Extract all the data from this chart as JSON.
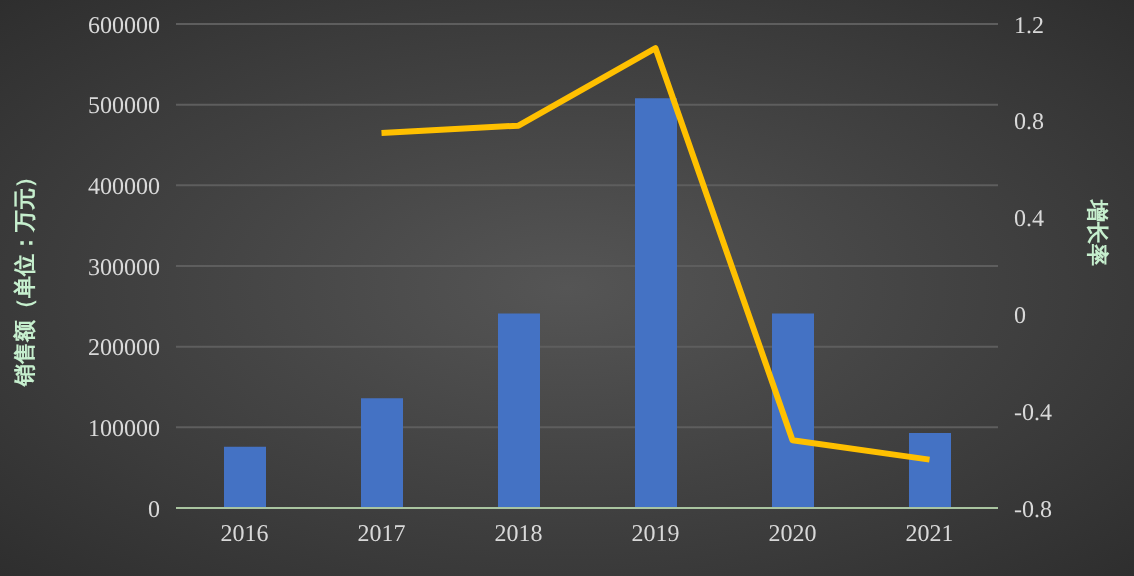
{
  "chart_data": {
    "type": "bar",
    "categories": [
      "2016",
      "2017",
      "2018",
      "2019",
      "2020",
      "2021"
    ],
    "series": [
      {
        "color": "#4472c4",
        "values": [
          76000,
          136000,
          241000,
          508000,
          241000,
          93000
        ]
      },
      {
        "type": "line",
        "axis": "y2",
        "color": "#ffc000",
        "values": [
          null,
          0.75,
          0.78,
          1.1,
          -0.52,
          -0.6
        ]
      }
    ],
    "ylabel": "销售额（单位：万元）",
    "y2label": "增长率",
    "ylim": [
      0,
      600000
    ],
    "yticks": [
      0,
      100000,
      200000,
      300000,
      400000,
      500000,
      600000
    ],
    "y2lim": [
      -0.8,
      1.2
    ],
    "y2ticks": [
      -0.8,
      -0.4,
      0,
      0.4,
      0.8,
      1.2
    ],
    "grid": "y",
    "legend": false,
    "marker": "none"
  }
}
